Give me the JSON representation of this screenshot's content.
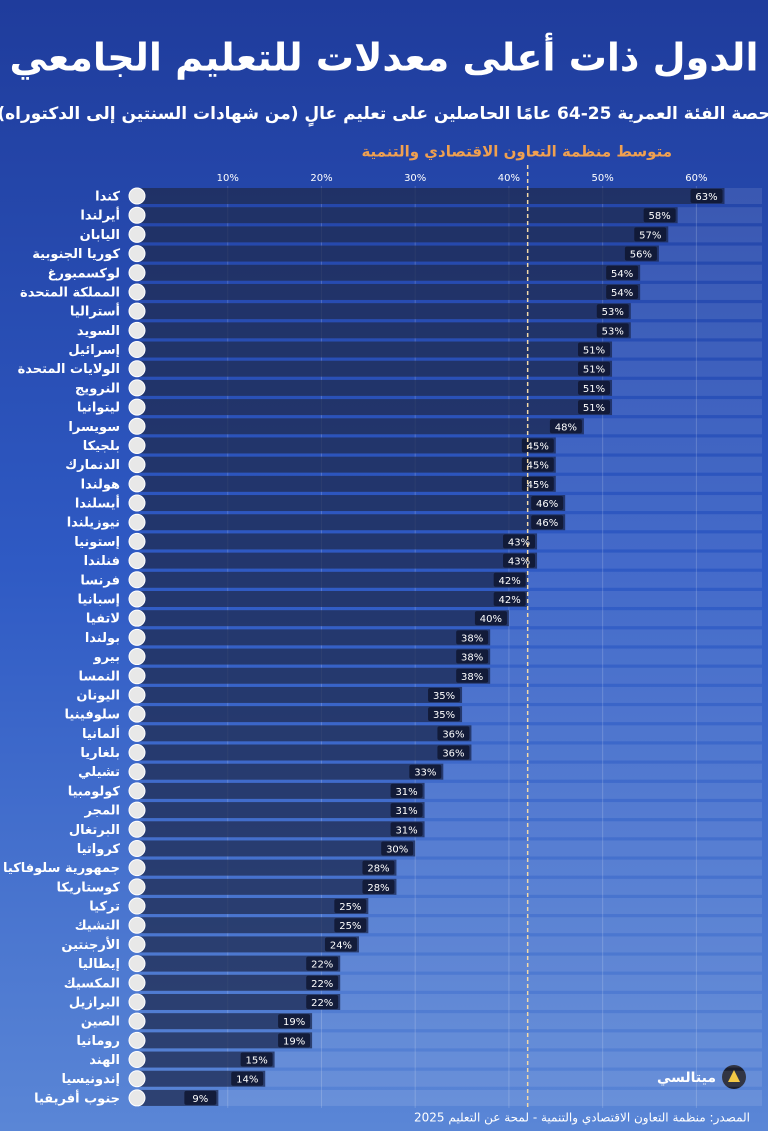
{
  "chart_data": {
    "type": "barh",
    "title": "الدول ذات أعلى معدلات للتعليم الجامعي",
    "subtitle": "حصة الفئة العمرية 25-64 عامًا الحاصلين على تعليم عالٍ (من شهادات السنتين إلى الدكتوراه)",
    "average": {
      "label": "متوسط منظمة التعاون الاقتصادي والتنمية",
      "value": 42
    },
    "categories": [
      "كندا",
      "أيرلندا",
      "اليابان",
      "كوريا الجنوبية",
      "لوكسمبورغ",
      "المملكة المتحدة",
      "أستراليا",
      "السويد",
      "إسرائيل",
      "الولايات المتحدة",
      "النرويج",
      "ليتوانيا",
      "سويسرا",
      "بلجيكا",
      "الدنمارك",
      "هولندا",
      "أيسلندا",
      "نيوزيلندا",
      "إستونيا",
      "فنلندا",
      "فرنسا",
      "إسبانيا",
      "لاتفيا",
      "بولندا",
      "بيرو",
      "النمسا",
      "اليونان",
      "سلوفينيا",
      "ألمانيا",
      "بلغاريا",
      "تشيلي",
      "كولومبيا",
      "المجر",
      "البرتغال",
      "كرواتيا",
      "جمهورية سلوفاكيا",
      "كوستاريكا",
      "تركيا",
      "التشيك",
      "الأرجنتين",
      "إيطاليا",
      "المكسيك",
      "البرازيل",
      "الصين",
      "رومانيا",
      "الهند",
      "إندونيسيا",
      "جنوب أفريقيا"
    ],
    "values": [
      63,
      58,
      57,
      56,
      54,
      54,
      53,
      53,
      51,
      51,
      51,
      51,
      48,
      45,
      45,
      45,
      46,
      46,
      43,
      43,
      42,
      42,
      40,
      38,
      38,
      38,
      35,
      35,
      36,
      36,
      33,
      31,
      31,
      31,
      30,
      28,
      28,
      25,
      25,
      24,
      22,
      22,
      22,
      19,
      19,
      15,
      14,
      9
    ],
    "value_labels": [
      "63%",
      "58%",
      "57%",
      "56%",
      "54%",
      "54%",
      "53%",
      "53%",
      "51%",
      "51%",
      "51%",
      "51%",
      "48%",
      "45%",
      "45%",
      "45%",
      "46%",
      "46%",
      "43%",
      "43%",
      "42%",
      "42%",
      "40%",
      "38%",
      "38%",
      "38%",
      "35%",
      "35%",
      "36%",
      "36%",
      "33%",
      "31%",
      "31%",
      "31%",
      "30%",
      "28%",
      "28%",
      "25%",
      "25%",
      "24%",
      "22%",
      "22%",
      "22%",
      "19%",
      "19%",
      "15%",
      "14%",
      "9%"
    ],
    "color": "#16224a",
    "xlim": [
      0,
      67
    ],
    "xticks": [
      {
        "value": 10,
        "label": "10%"
      },
      {
        "value": 20,
        "label": "20%"
      },
      {
        "value": 30,
        "label": "30%"
      },
      {
        "value": 40,
        "label": "40%"
      },
      {
        "value": 50,
        "label": "50%"
      },
      {
        "value": 60,
        "label": "60%"
      }
    ],
    "grid": true,
    "source": "المصدر: منظمة التعاون الاقتصادي والتنمية - لمحة عن التعليم 2025",
    "brand": "ميتالسي"
  }
}
